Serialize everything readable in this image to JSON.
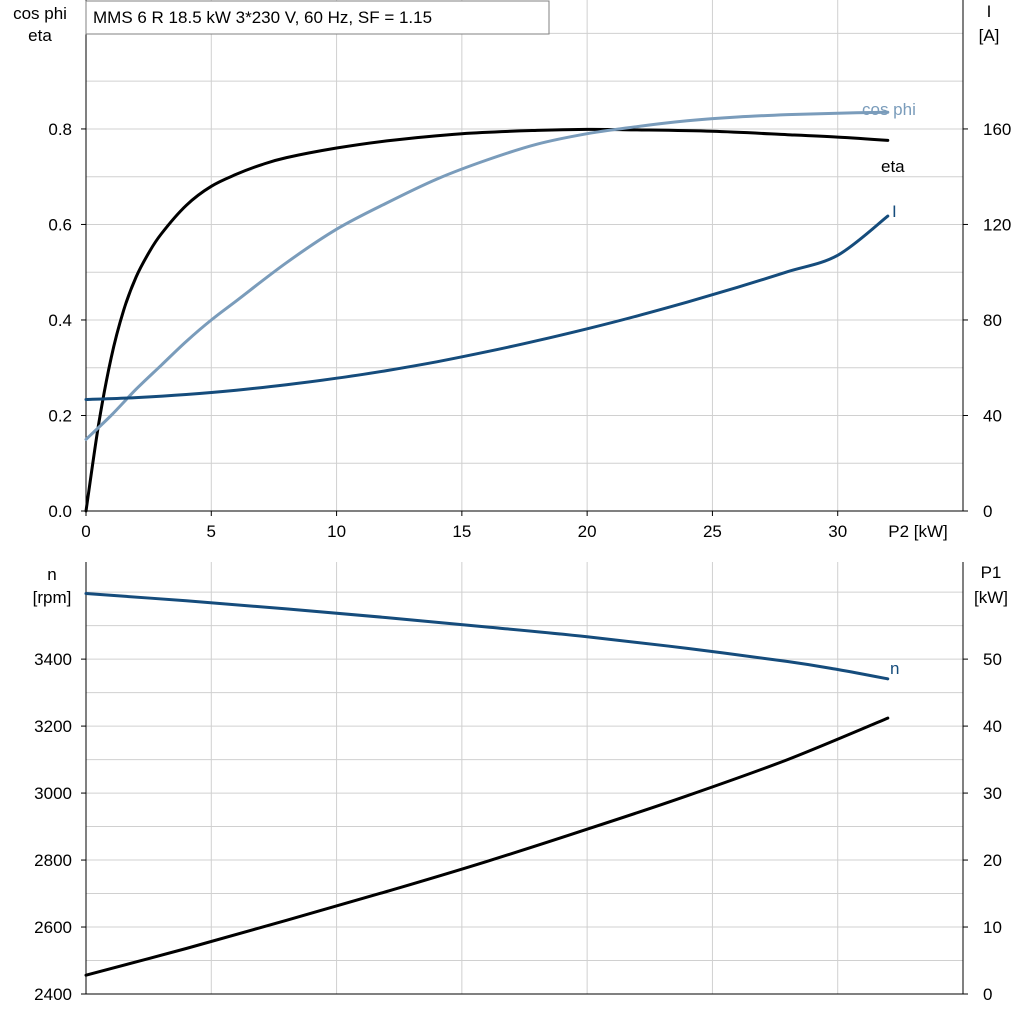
{
  "title": "MMS 6 R   18.5 kW   3*230 V, 60 Hz, SF = 1.15",
  "colors": {
    "eta": "#000000",
    "cos_phi": "#7a9cbb",
    "I": "#154c7c",
    "n": "#154c7c",
    "P1": "#000000",
    "grid": "#d0d0d0"
  },
  "chart_data": [
    {
      "type": "line",
      "xlabel": "P2 [kW]",
      "xlim": [
        0,
        35
      ],
      "x_ticks": [
        "0",
        "5",
        "10",
        "15",
        "20",
        "25",
        "30"
      ],
      "ylabel_left": [
        "cos phi",
        "eta"
      ],
      "ylim_left": [
        0,
        1.07
      ],
      "y_ticks_left": [
        "0.0",
        "0.2",
        "0.4",
        "0.6",
        "0.8"
      ],
      "ylabel_right": [
        "I",
        "[A]"
      ],
      "ylim_right": [
        0,
        214
      ],
      "y_ticks_right": [
        "0",
        "40",
        "80",
        "120",
        "160"
      ],
      "grid": true,
      "series": [
        {
          "name": "eta",
          "axis": "left",
          "x": [
            0,
            0.5,
            1,
            1.5,
            2,
            2.5,
            3,
            4,
            5,
            6,
            7,
            8,
            10,
            12,
            15,
            18,
            20,
            22,
            25,
            28,
            30,
            32
          ],
          "y": [
            0,
            0.18,
            0.32,
            0.42,
            0.49,
            0.54,
            0.58,
            0.64,
            0.68,
            0.705,
            0.725,
            0.74,
            0.76,
            0.775,
            0.79,
            0.797,
            0.799,
            0.798,
            0.795,
            0.788,
            0.783,
            0.776
          ]
        },
        {
          "name": "cos phi",
          "axis": "left",
          "x": [
            0,
            1,
            2,
            3,
            4,
            5,
            6,
            8,
            10,
            12,
            14,
            16,
            18,
            20,
            22,
            24,
            26,
            28,
            30,
            32
          ],
          "y": [
            0.15,
            0.2,
            0.255,
            0.305,
            0.355,
            0.4,
            0.44,
            0.52,
            0.59,
            0.645,
            0.695,
            0.735,
            0.768,
            0.79,
            0.805,
            0.817,
            0.825,
            0.83,
            0.833,
            0.835
          ]
        },
        {
          "name": "I",
          "axis": "right",
          "x": [
            0,
            2,
            4,
            6,
            8,
            10,
            12,
            14,
            16,
            18,
            20,
            22,
            24,
            26,
            28,
            30,
            32
          ],
          "y": [
            46.7,
            47.5,
            48.8,
            50.6,
            52.9,
            55.6,
            58.8,
            62.5,
            66.7,
            71.3,
            76.3,
            81.7,
            87.5,
            93.7,
            100.2,
            107.1,
            123.5
          ]
        }
      ]
    },
    {
      "type": "line",
      "xlabel": "",
      "xlim": [
        0,
        35
      ],
      "ylabel_left": [
        "n",
        "[rpm]"
      ],
      "ylim_left": [
        2400,
        3690
      ],
      "y_ticks_left": [
        "2400",
        "2600",
        "2800",
        "3000",
        "3200",
        "3400"
      ],
      "ylabel_right": [
        "P1",
        "[kW]"
      ],
      "ylim_right": [
        0,
        64.5
      ],
      "y_ticks_right": [
        "0",
        "10",
        "20",
        "30",
        "40",
        "50"
      ],
      "grid": true,
      "series": [
        {
          "name": "n",
          "axis": "left",
          "x": [
            0,
            4,
            8,
            12,
            16,
            20,
            24,
            28,
            30,
            32
          ],
          "y": [
            3596,
            3574,
            3550,
            3524,
            3496,
            3467,
            3432,
            3393,
            3369,
            3341
          ]
        },
        {
          "name": "P1",
          "axis": "right",
          "x": [
            0,
            4,
            8,
            12,
            16,
            20,
            24,
            28,
            32
          ],
          "y": [
            2.8,
            6.8,
            11.0,
            15.3,
            19.8,
            24.6,
            29.6,
            35.0,
            41.2
          ]
        }
      ]
    }
  ]
}
